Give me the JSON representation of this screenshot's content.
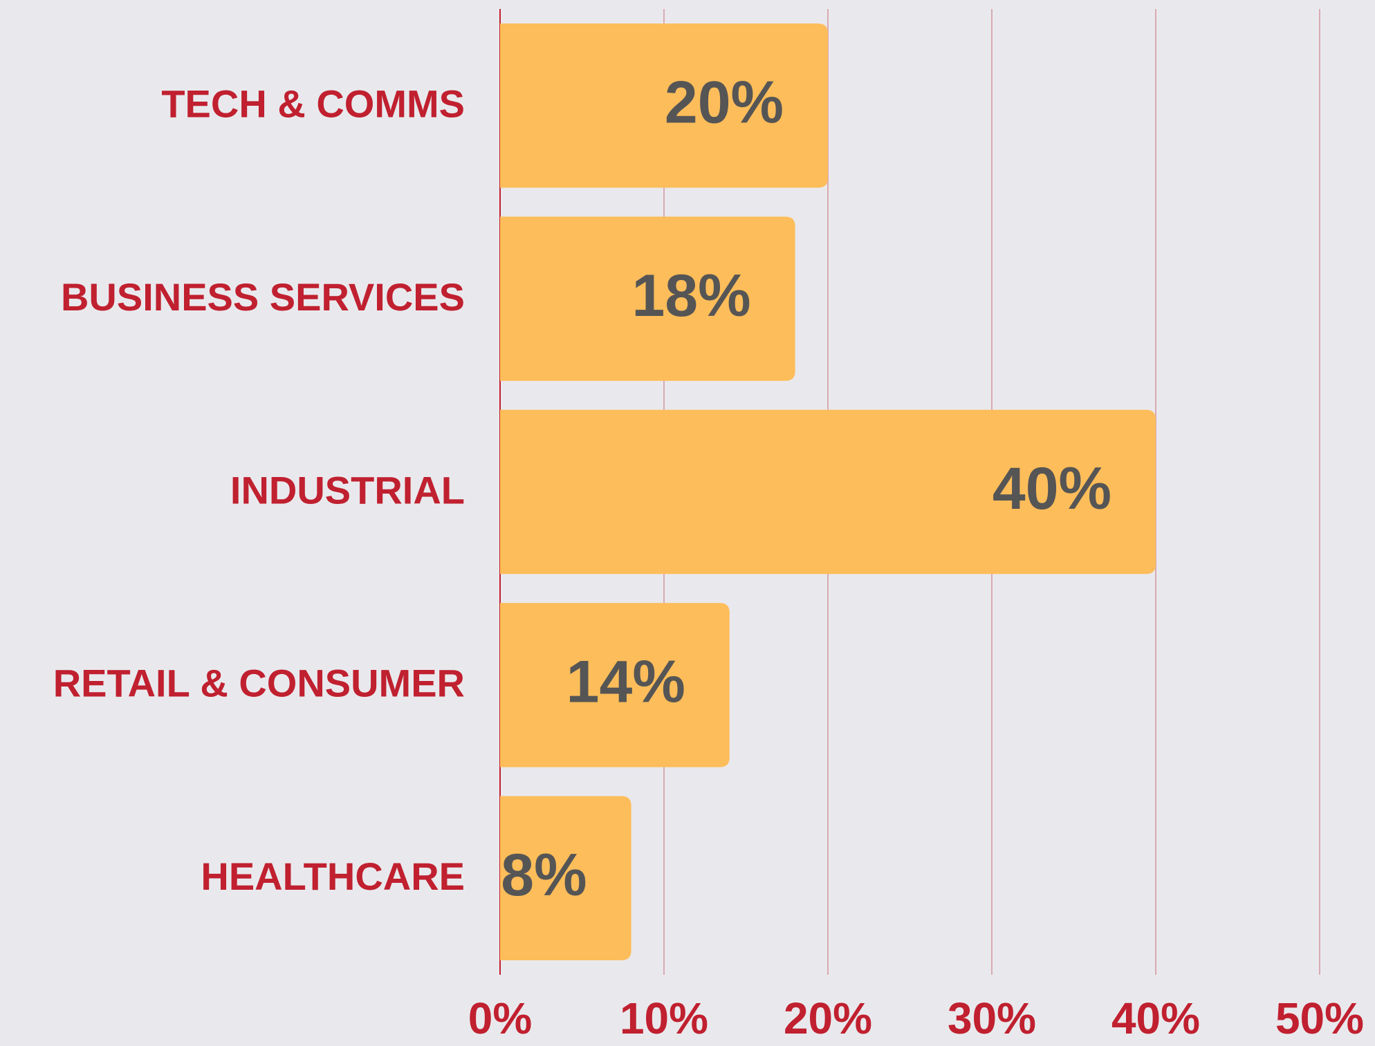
{
  "chart_data": {
    "type": "hbar",
    "categories": [
      "TECH & COMMS",
      "BUSINESS SERVICES",
      "INDUSTRIAL",
      "RETAIL & CONSUMER",
      "HEALTHCARE"
    ],
    "values": [
      20,
      18,
      40,
      14,
      8
    ],
    "value_labels": [
      "20%",
      "18%",
      "40%",
      "14%",
      "8%"
    ],
    "color": "#fdbd5a",
    "xlim": [
      0,
      50
    ],
    "xticks": [
      {
        "value": 0,
        "label": "0%"
      },
      {
        "value": 10,
        "label": "10%"
      },
      {
        "value": 20,
        "label": "20%"
      },
      {
        "value": 30,
        "label": "30%"
      },
      {
        "value": 40,
        "label": "40%"
      },
      {
        "value": 50,
        "label": "50%"
      }
    ],
    "grid": true
  }
}
